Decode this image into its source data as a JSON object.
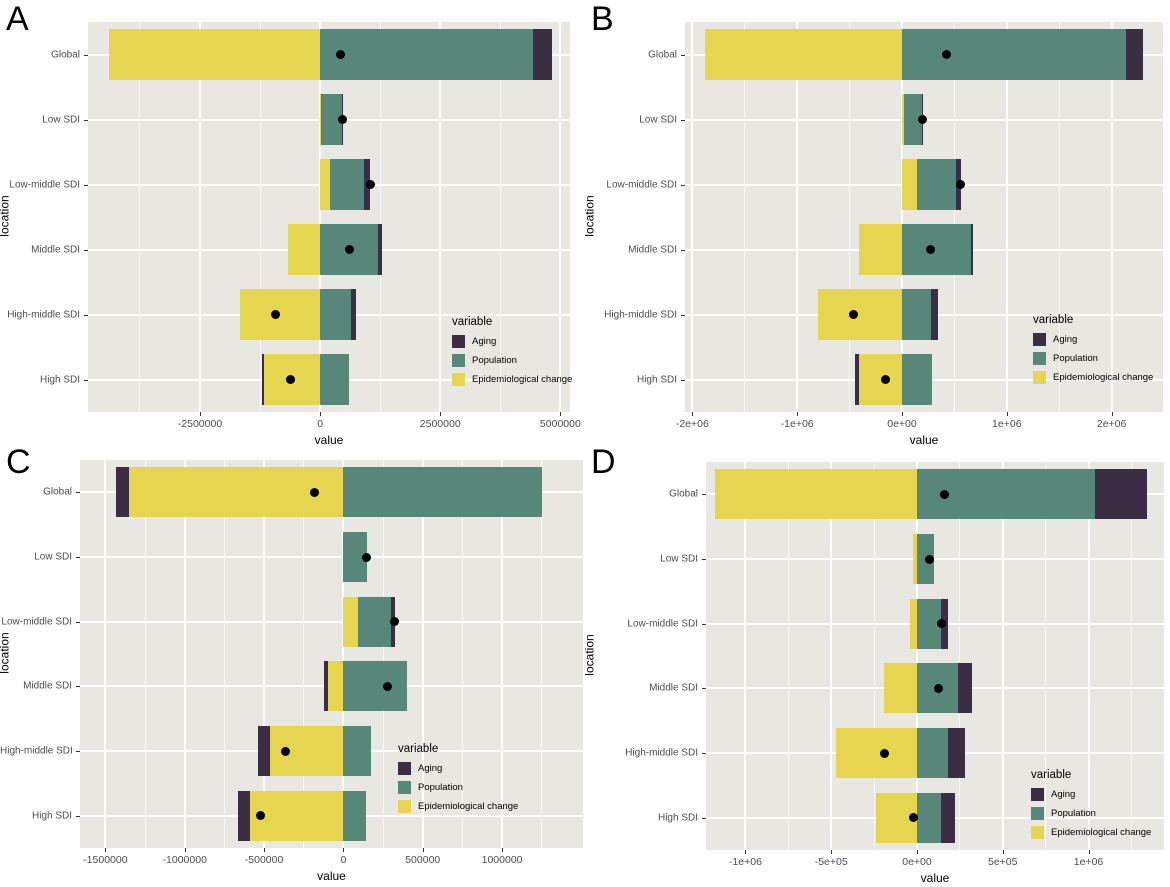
{
  "colors": {
    "aging": "#3a2d44",
    "population": "#578778",
    "epidemiological_change": "#e6d54e",
    "panel_background": "#e8e7e2",
    "grid_major": "#ffffff",
    "net_dot": "#000000",
    "tick_text": "#4d4d4d"
  },
  "legend": {
    "title": "variable",
    "items": [
      {
        "key": "aging",
        "label": "Aging"
      },
      {
        "key": "population",
        "label": "Population"
      },
      {
        "key": "epidemiological_change",
        "label": "Epidemiological change"
      }
    ]
  },
  "chart_data": [
    {
      "panel_label": "A",
      "type": "bar",
      "orientation": "horizontal",
      "stacked": true,
      "xlabel": "value",
      "ylabel": "location",
      "categories": [
        "Global",
        "Low SDI",
        "Low-middle SDI",
        "Middle SDI",
        "High-middle SDI",
        "High SDI"
      ],
      "xlim": [
        -4830000,
        5200000
      ],
      "xticks": [
        {
          "value": -2500000,
          "label": "-2500000"
        },
        {
          "value": 0,
          "label": "0"
        },
        {
          "value": 2500000,
          "label": "2500000"
        },
        {
          "value": 5000000,
          "label": "5000000"
        }
      ],
      "series": [
        {
          "name": "Aging",
          "values": [
            400000,
            10000,
            125000,
            80000,
            100000,
            -40000
          ]
        },
        {
          "name": "Population",
          "values": [
            4420000,
            440000,
            710000,
            1200000,
            650000,
            600000
          ]
        },
        {
          "name": "Epidemiological change",
          "values": [
            -4400000,
            20000,
            210000,
            -670000,
            -1670000,
            -1170000
          ]
        }
      ],
      "net_points": [
        420000,
        470000,
        1045000,
        610000,
        -920000,
        -610000
      ],
      "legend_position": "inside-right-bottom",
      "grid": true
    },
    {
      "panel_label": "B",
      "type": "bar",
      "orientation": "horizontal",
      "stacked": true,
      "xlabel": "value",
      "ylabel": "location",
      "categories": [
        "Global",
        "Low SDI",
        "Low-middle SDI",
        "Middle SDI",
        "High-middle SDI",
        "High SDI"
      ],
      "xlim": [
        -2070000,
        2490000
      ],
      "xticks": [
        {
          "value": -2000000,
          "label": "-2e+06"
        },
        {
          "value": -1000000,
          "label": "-1e+06"
        },
        {
          "value": 0,
          "label": "0e+00"
        },
        {
          "value": 1000000,
          "label": "1e+06"
        },
        {
          "value": 2000000,
          "label": "2e+06"
        }
      ],
      "series": [
        {
          "name": "Aging",
          "values": [
            160000,
            10000,
            40000,
            20000,
            60000,
            -40000
          ]
        },
        {
          "name": "Population",
          "values": [
            2140000,
            170000,
            380000,
            660000,
            280000,
            290000
          ]
        },
        {
          "name": "Epidemiological change",
          "values": [
            -1880000,
            20000,
            140000,
            -410000,
            -800000,
            -410000
          ]
        }
      ],
      "net_points": [
        420000,
        200000,
        560000,
        270000,
        -460000,
        -160000
      ],
      "legend_position": "inside-right-bottom",
      "grid": true
    },
    {
      "panel_label": "C",
      "type": "bar",
      "orientation": "horizontal",
      "stacked": true,
      "xlabel": "value",
      "ylabel": "location",
      "categories": [
        "Global",
        "Low SDI",
        "Low-middle SDI",
        "Middle SDI",
        "High-middle SDI",
        "High SDI"
      ],
      "xlim": [
        -1660000,
        1510000
      ],
      "xticks": [
        {
          "value": -1500000,
          "label": "-1500000"
        },
        {
          "value": -1000000,
          "label": "-1000000"
        },
        {
          "value": -500000,
          "label": "-500000"
        },
        {
          "value": 0,
          "label": "0"
        },
        {
          "value": 500000,
          "label": "500000"
        },
        {
          "value": 1000000,
          "label": "1000000"
        }
      ],
      "series": [
        {
          "name": "Aging",
          "values": [
            -85000,
            0,
            25000,
            -25000,
            -80000,
            -75000
          ]
        },
        {
          "name": "Population",
          "values": [
            1250000,
            150000,
            210000,
            400000,
            175000,
            145000
          ]
        },
        {
          "name": "Epidemiological change",
          "values": [
            -1350000,
            -5000,
            90000,
            -100000,
            -460000,
            -590000
          ]
        }
      ],
      "net_points": [
        -185000,
        145000,
        325000,
        275000,
        -365000,
        -520000
      ],
      "legend_position": "inside-right-bottom",
      "grid": true
    },
    {
      "panel_label": "D",
      "type": "bar",
      "orientation": "horizontal",
      "stacked": true,
      "xlabel": "value",
      "ylabel": "location",
      "categories": [
        "Global",
        "Low SDI",
        "Low-middle SDI",
        "Middle SDI",
        "High-middle SDI",
        "High SDI"
      ],
      "xlim": [
        -1230000,
        1440000
      ],
      "xticks": [
        {
          "value": -1000000,
          "label": "-1e+06"
        },
        {
          "value": -500000,
          "label": "-5e+05"
        },
        {
          "value": 0,
          "label": "0e+00"
        },
        {
          "value": 500000,
          "label": "5e+05"
        },
        {
          "value": 1000000,
          "label": "1e+06"
        }
      ],
      "series": [
        {
          "name": "Aging",
          "values": [
            300000,
            0,
            40000,
            80000,
            100000,
            80000
          ]
        },
        {
          "name": "Population",
          "values": [
            1040000,
            100000,
            140000,
            240000,
            180000,
            140000
          ]
        },
        {
          "name": "Epidemiological change",
          "values": [
            -1180000,
            -25000,
            -40000,
            -195000,
            -470000,
            -240000
          ]
        }
      ],
      "net_points": [
        160000,
        75000,
        140000,
        125000,
        -190000,
        -20000
      ],
      "legend_position": "inside-right-bottom",
      "grid": true
    }
  ]
}
